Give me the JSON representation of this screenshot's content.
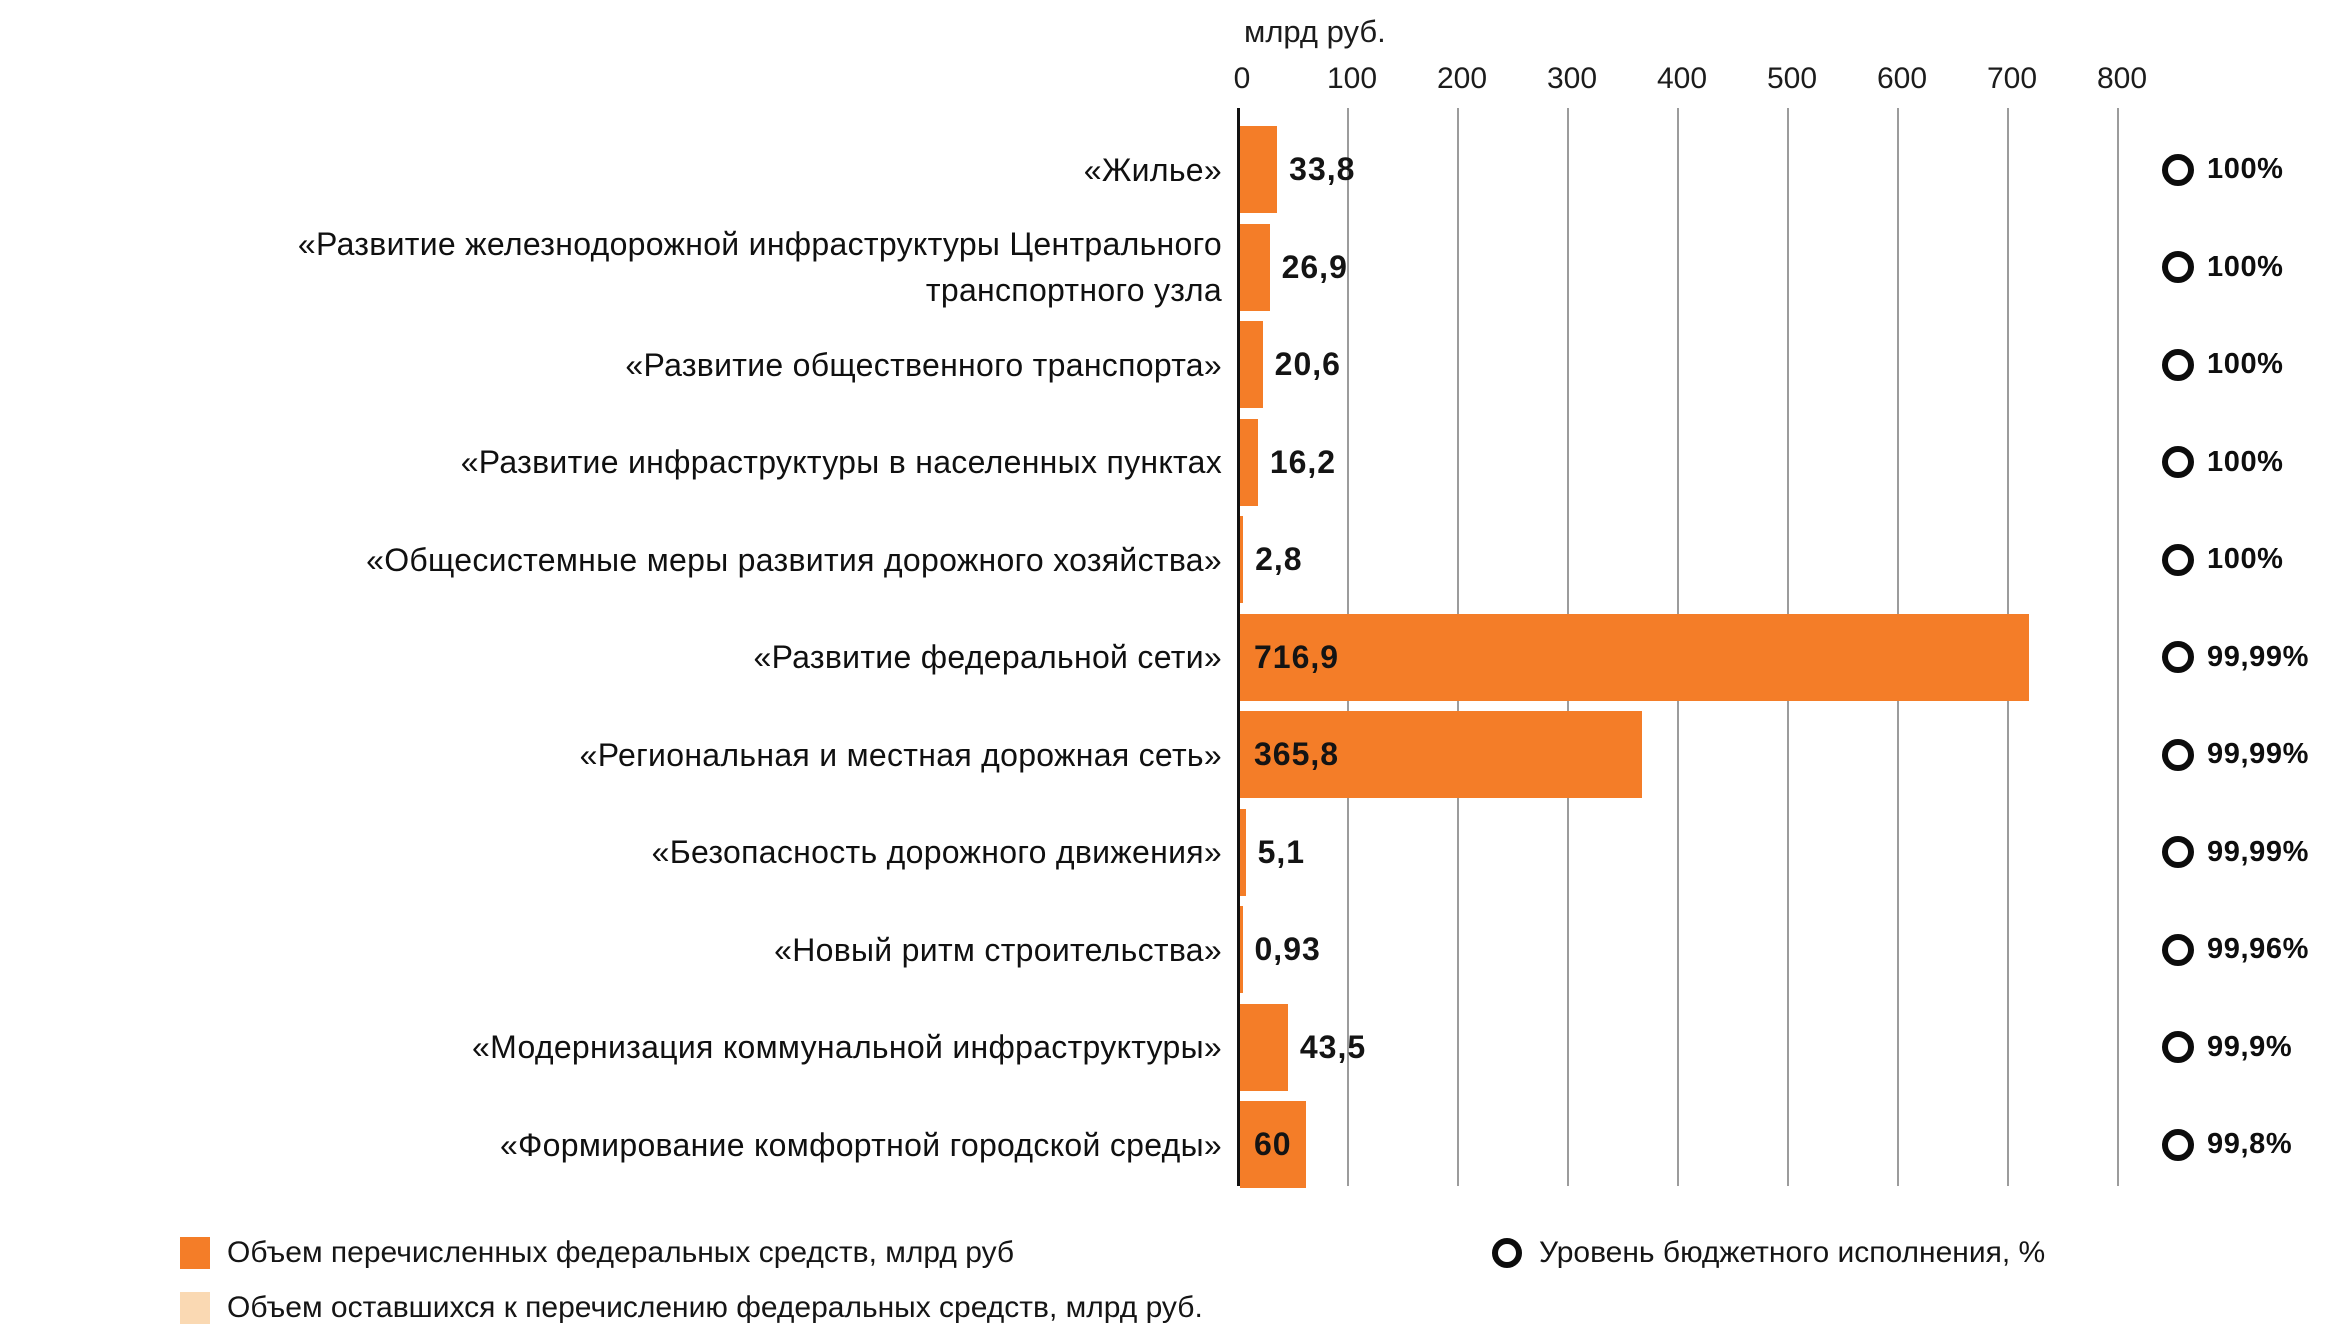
{
  "chart_data": {
    "type": "bar",
    "orientation": "horizontal",
    "axis_title": "млрд руб.",
    "xlabel": "млрд руб.",
    "x_ticks": [
      "0",
      "100",
      "200",
      "300",
      "400",
      "500",
      "600",
      "700",
      "800"
    ],
    "xlim": [
      0,
      800
    ],
    "grid": true,
    "legend_position": "bottom",
    "categories": [
      "«Жилье»",
      "«Развитие железнодорожной инфраструктуры Центрального\nтранспортного узла",
      "«Развитие общественного транспорта»",
      "«Развитие инфраструктуры в населенных пунктах",
      "«Общесистемные меры развития дорожного хозяйства»",
      "«Развитие федеральной сети»",
      "«Региональная и местная дорожная сеть»",
      "«Безопасность дорожного движения»",
      "«Новый ритм строительства»",
      "«Модернизация коммунальной инфраструктуры»",
      "«Формирование комфортной городской среды»"
    ],
    "series": [
      {
        "name": "Объем перечисленных федеральных средств, млрд руб",
        "values": [
          33.8,
          26.9,
          20.6,
          16.2,
          2.8,
          716.9,
          365.8,
          5.1,
          0.93,
          43.5,
          60
        ]
      },
      {
        "name": "Уровень бюджетного исполнения, %",
        "values": [
          100,
          100,
          100,
          100,
          100,
          99.99,
          99.99,
          99.99,
          99.96,
          99.9,
          99.8
        ]
      }
    ],
    "value_labels": [
      "33,8",
      "26,9",
      "20,6",
      "16,2",
      "2,8",
      "716,9",
      "365,8",
      "5,1",
      "0,93",
      "43,5",
      "60"
    ],
    "percent_labels": [
      "100%",
      "100%",
      "100%",
      "100%",
      "100%",
      "99,99%",
      "99,99%",
      "99,99%",
      "99,96%",
      "99,9%",
      "99,8%"
    ],
    "value_label_inside": [
      false,
      false,
      false,
      false,
      false,
      true,
      true,
      false,
      false,
      false,
      true
    ],
    "legend": [
      {
        "marker": "square",
        "color": "#F47D28",
        "label": "Объем перечисленных федеральных средств, млрд руб"
      },
      {
        "marker": "square",
        "color": "#FAD9B3",
        "label": "Объем оставшихся к перечислению федеральных средств, млрд руб."
      },
      {
        "marker": "ring",
        "color": "#0c0c0c",
        "label": "Уровень бюджетного исполнения, %"
      }
    ],
    "colors": {
      "bar": "#F47D28",
      "bar_remaining": "#FAD9B3",
      "gridline": "#9c9c9c",
      "axis_line": "#111111",
      "text": "#111111"
    }
  }
}
